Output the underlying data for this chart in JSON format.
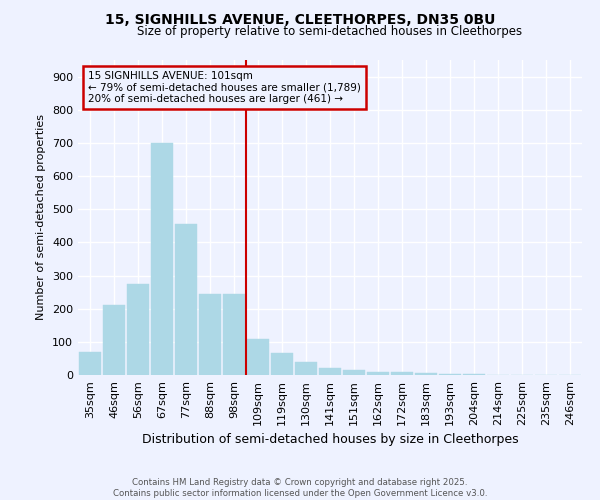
{
  "title1": "15, SIGNHILLS AVENUE, CLEETHORPES, DN35 0BU",
  "title2": "Size of property relative to semi-detached houses in Cleethorpes",
  "xlabel": "Distribution of semi-detached houses by size in Cleethorpes",
  "ylabel": "Number of semi-detached properties",
  "categories": [
    "35sqm",
    "46sqm",
    "56sqm",
    "67sqm",
    "77sqm",
    "88sqm",
    "98sqm",
    "109sqm",
    "119sqm",
    "130sqm",
    "141sqm",
    "151sqm",
    "162sqm",
    "172sqm",
    "183sqm",
    "193sqm",
    "204sqm",
    "214sqm",
    "225sqm",
    "235sqm",
    "246sqm"
  ],
  "values": [
    70,
    210,
    275,
    700,
    455,
    245,
    245,
    110,
    65,
    40,
    20,
    15,
    10,
    8,
    5,
    3,
    2,
    1,
    1,
    0,
    0
  ],
  "bar_color": "#add8e6",
  "bar_edge_color": "#add8e6",
  "bg_color": "#eef2ff",
  "grid_color": "#ffffff",
  "vline_x": 7.0,
  "pct_smaller": "79%",
  "n_smaller": "1,789",
  "pct_larger": "20%",
  "n_larger": "461",
  "annotation_box_color": "#cc0000",
  "footer1": "Contains HM Land Registry data © Crown copyright and database right 2025.",
  "footer2": "Contains public sector information licensed under the Open Government Licence v3.0.",
  "ylim": [
    0,
    950
  ],
  "yticks": [
    0,
    100,
    200,
    300,
    400,
    500,
    600,
    700,
    800,
    900
  ]
}
